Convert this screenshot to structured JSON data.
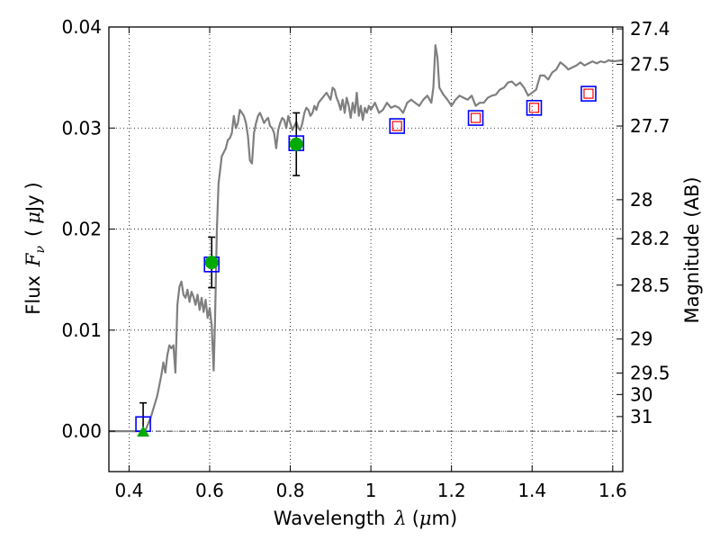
{
  "chart_data": {
    "type": "scatter",
    "xlabel": {
      "prefix": "Wavelength",
      "symbol": "λ",
      "unit_open": "(",
      "unit_mu": "μ",
      "unit_rest": "m)"
    },
    "ylabel": {
      "prefix": "Flux",
      "symbol": "F",
      "sub": "ν",
      "unit_open": "(",
      "unit_mu": "μ",
      "unit_rest": "Jy",
      "unit_close": ")"
    },
    "y2label": "Magnitude (AB)",
    "xlim": [
      0.35,
      1.625
    ],
    "ylim": [
      -0.004,
      0.04
    ],
    "grid": true,
    "x_ticks": [
      0.4,
      0.6,
      0.8,
      1.0,
      1.2,
      1.4,
      1.6
    ],
    "x_tick_labels": [
      "0.4",
      "0.6",
      "0.8",
      "1",
      "1.2",
      "1.4",
      "1.6"
    ],
    "y_ticks": [
      0.0,
      0.01,
      0.02,
      0.03,
      0.04
    ],
    "y_tick_labels": [
      "0.00",
      "0.01",
      "0.02",
      "0.03",
      "0.04"
    ],
    "y2_ticks": [
      27.4,
      27.5,
      27.7,
      28,
      28.2,
      28.5,
      29,
      29.5,
      30,
      31
    ],
    "y2_tick_labels": [
      "27.4",
      "27.5",
      "27.7",
      "28",
      "28.2",
      "28.5",
      "29",
      "29.5",
      "30",
      "31"
    ],
    "zero_line": 0.0,
    "series": [
      {
        "kind": "model_sed",
        "color": "#7f7f7f",
        "points": [
          [
            0.35,
            0.0
          ],
          [
            0.42,
            0.0
          ],
          [
            0.44,
            0.0
          ],
          [
            0.455,
            0.0015
          ],
          [
            0.47,
            0.0035
          ],
          [
            0.48,
            0.0055
          ],
          [
            0.485,
            0.0068
          ],
          [
            0.49,
            0.0058
          ],
          [
            0.495,
            0.0075
          ],
          [
            0.5,
            0.0085
          ],
          [
            0.505,
            0.0082
          ],
          [
            0.51,
            0.0085
          ],
          [
            0.515,
            0.0058
          ],
          [
            0.52,
            0.0125
          ],
          [
            0.525,
            0.0143
          ],
          [
            0.53,
            0.0148
          ],
          [
            0.535,
            0.0135
          ],
          [
            0.54,
            0.0132
          ],
          [
            0.545,
            0.014
          ],
          [
            0.55,
            0.0128
          ],
          [
            0.555,
            0.0138
          ],
          [
            0.56,
            0.0133
          ],
          [
            0.565,
            0.0125
          ],
          [
            0.57,
            0.0135
          ],
          [
            0.575,
            0.012
          ],
          [
            0.58,
            0.0132
          ],
          [
            0.585,
            0.0118
          ],
          [
            0.59,
            0.013
          ],
          [
            0.595,
            0.0112
          ],
          [
            0.6,
            0.0122
          ],
          [
            0.605,
            0.0105
          ],
          [
            0.61,
            0.006
          ],
          [
            0.613,
            0.0105
          ],
          [
            0.618,
            0.02
          ],
          [
            0.622,
            0.0245
          ],
          [
            0.63,
            0.0272
          ],
          [
            0.64,
            0.028
          ],
          [
            0.645,
            0.0288
          ],
          [
            0.65,
            0.029
          ],
          [
            0.655,
            0.0295
          ],
          [
            0.66,
            0.0312
          ],
          [
            0.665,
            0.03
          ],
          [
            0.67,
            0.0305
          ],
          [
            0.675,
            0.0318
          ],
          [
            0.68,
            0.0315
          ],
          [
            0.685,
            0.0312
          ],
          [
            0.69,
            0.0305
          ],
          [
            0.695,
            0.0292
          ],
          [
            0.7,
            0.0268
          ],
          [
            0.705,
            0.0265
          ],
          [
            0.71,
            0.0295
          ],
          [
            0.715,
            0.0305
          ],
          [
            0.72,
            0.0312
          ],
          [
            0.725,
            0.0315
          ],
          [
            0.73,
            0.031
          ],
          [
            0.735,
            0.0305
          ],
          [
            0.74,
            0.0308
          ],
          [
            0.745,
            0.031
          ],
          [
            0.75,
            0.0302
          ],
          [
            0.755,
            0.03
          ],
          [
            0.76,
            0.0295
          ],
          [
            0.765,
            0.028
          ],
          [
            0.77,
            0.0298
          ],
          [
            0.775,
            0.0305
          ],
          [
            0.78,
            0.031
          ],
          [
            0.785,
            0.0308
          ],
          [
            0.79,
            0.03
          ],
          [
            0.795,
            0.0312
          ],
          [
            0.8,
            0.0305
          ],
          [
            0.805,
            0.0298
          ],
          [
            0.81,
            0.0302
          ],
          [
            0.815,
            0.0306
          ],
          [
            0.82,
            0.03
          ],
          [
            0.825,
            0.0298
          ],
          [
            0.83,
            0.0305
          ],
          [
            0.835,
            0.0315
          ],
          [
            0.84,
            0.032
          ],
          [
            0.845,
            0.0318
          ],
          [
            0.85,
            0.0312
          ],
          [
            0.855,
            0.0315
          ],
          [
            0.86,
            0.0322
          ],
          [
            0.865,
            0.0318
          ],
          [
            0.87,
            0.0325
          ],
          [
            0.88,
            0.033
          ],
          [
            0.89,
            0.0335
          ],
          [
            0.9,
            0.0328
          ],
          [
            0.905,
            0.034
          ],
          [
            0.91,
            0.0338
          ],
          [
            0.915,
            0.033
          ],
          [
            0.92,
            0.0325
          ],
          [
            0.925,
            0.0318
          ],
          [
            0.93,
            0.0328
          ],
          [
            0.935,
            0.0315
          ],
          [
            0.94,
            0.033
          ],
          [
            0.945,
            0.0322
          ],
          [
            0.95,
            0.031
          ],
          [
            0.955,
            0.0325
          ],
          [
            0.96,
            0.0315
          ],
          [
            0.965,
            0.0335
          ],
          [
            0.97,
            0.0312
          ],
          [
            0.975,
            0.0322
          ],
          [
            0.98,
            0.0308
          ],
          [
            0.985,
            0.032
          ],
          [
            0.99,
            0.0315
          ],
          [
            0.995,
            0.0322
          ],
          [
            1.0,
            0.0318
          ],
          [
            1.01,
            0.0325
          ],
          [
            1.02,
            0.0315
          ],
          [
            1.03,
            0.0318
          ],
          [
            1.04,
            0.0325
          ],
          [
            1.05,
            0.032
          ],
          [
            1.06,
            0.0322
          ],
          [
            1.07,
            0.032
          ],
          [
            1.08,
            0.0315
          ],
          [
            1.09,
            0.0325
          ],
          [
            1.1,
            0.0328
          ],
          [
            1.11,
            0.0325
          ],
          [
            1.12,
            0.0322
          ],
          [
            1.13,
            0.0328
          ],
          [
            1.14,
            0.0332
          ],
          [
            1.15,
            0.0325
          ],
          [
            1.155,
            0.034
          ],
          [
            1.16,
            0.0382
          ],
          [
            1.165,
            0.037
          ],
          [
            1.17,
            0.034
          ],
          [
            1.18,
            0.0333
          ],
          [
            1.19,
            0.0328
          ],
          [
            1.2,
            0.0322
          ],
          [
            1.21,
            0.0328
          ],
          [
            1.22,
            0.0332
          ],
          [
            1.23,
            0.033
          ],
          [
            1.24,
            0.0328
          ],
          [
            1.25,
            0.0332
          ],
          [
            1.26,
            0.0322
          ],
          [
            1.27,
            0.0325
          ],
          [
            1.28,
            0.0325
          ],
          [
            1.29,
            0.033
          ],
          [
            1.3,
            0.0332
          ],
          [
            1.31,
            0.0333
          ],
          [
            1.32,
            0.0338
          ],
          [
            1.33,
            0.034
          ],
          [
            1.34,
            0.0345
          ],
          [
            1.35,
            0.0346
          ],
          [
            1.36,
            0.0342
          ],
          [
            1.37,
            0.0345
          ],
          [
            1.38,
            0.034
          ],
          [
            1.39,
            0.0332
          ],
          [
            1.4,
            0.0335
          ],
          [
            1.41,
            0.0338
          ],
          [
            1.42,
            0.0352
          ],
          [
            1.43,
            0.0352
          ],
          [
            1.44,
            0.0348
          ],
          [
            1.45,
            0.0355
          ],
          [
            1.46,
            0.0358
          ],
          [
            1.47,
            0.0365
          ],
          [
            1.48,
            0.0362
          ],
          [
            1.49,
            0.0358
          ],
          [
            1.5,
            0.036
          ],
          [
            1.51,
            0.0362
          ],
          [
            1.52,
            0.0365
          ],
          [
            1.53,
            0.0362
          ],
          [
            1.54,
            0.0364
          ],
          [
            1.55,
            0.0366
          ],
          [
            1.56,
            0.0364
          ],
          [
            1.57,
            0.0366
          ],
          [
            1.58,
            0.0365
          ],
          [
            1.59,
            0.0367
          ],
          [
            1.6,
            0.0366
          ],
          [
            1.625,
            0.0367
          ]
        ]
      },
      {
        "kind": "model_photometry",
        "marker": "square",
        "color": "#0000ff",
        "points": [
          [
            0.435,
            0.0007
          ],
          [
            0.605,
            0.0165
          ],
          [
            0.815,
            0.0285
          ],
          [
            1.065,
            0.0302
          ],
          [
            1.26,
            0.031
          ],
          [
            1.405,
            0.032
          ],
          [
            1.54,
            0.0334
          ]
        ]
      },
      {
        "kind": "upper_limits",
        "marker": "square",
        "color": "#ff0000",
        "points": [
          [
            1.065,
            0.0302
          ],
          [
            1.26,
            0.031
          ],
          [
            1.405,
            0.032
          ],
          [
            1.54,
            0.0334
          ]
        ]
      },
      {
        "kind": "detections",
        "marker": "circle",
        "color": "#00aa00",
        "points": [
          [
            0.605,
            0.0167,
            0.0025
          ],
          [
            0.815,
            0.0284,
            0.0031
          ]
        ]
      },
      {
        "kind": "non_detection",
        "marker": "triangle",
        "color": "#00aa00",
        "points": [
          [
            0.435,
            0.0,
            0.0028
          ]
        ]
      }
    ]
  }
}
